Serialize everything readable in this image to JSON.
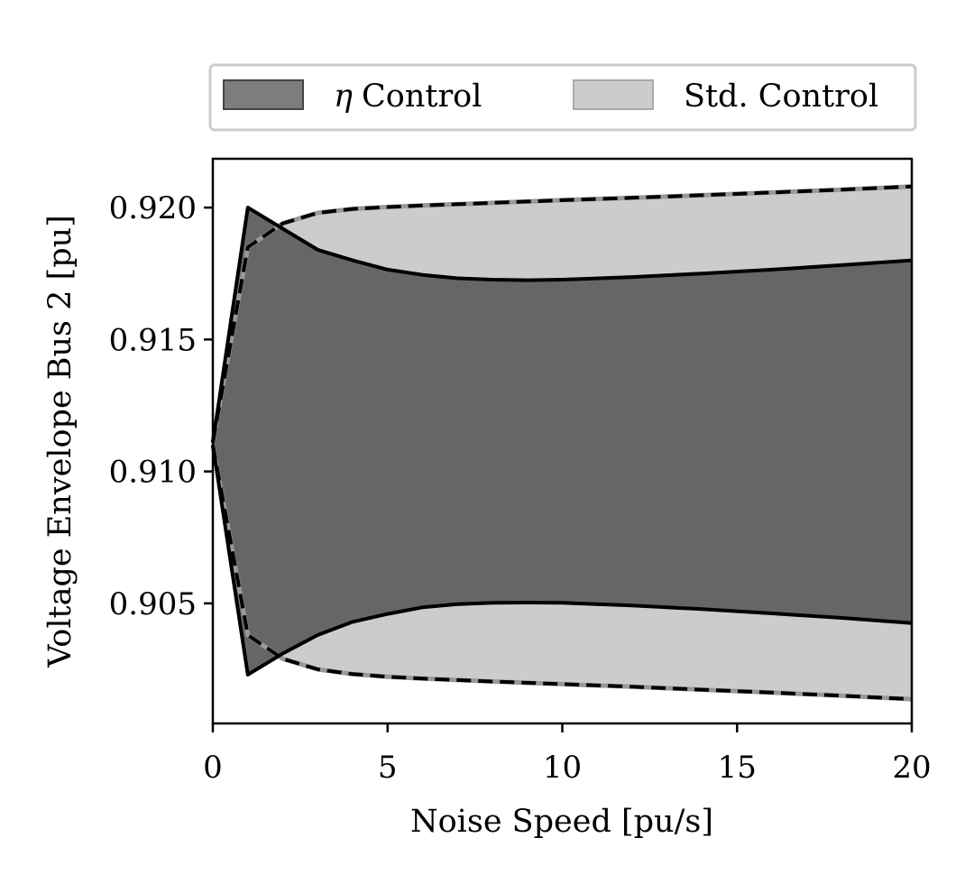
{
  "chart_data": {
    "type": "area",
    "xlabel": "Noise Speed [pu/s]",
    "ylabel": "Voltage Envelope Bus 2 [pu]",
    "xlim": [
      0,
      20
    ],
    "ylim": [
      0.90045,
      0.92185
    ],
    "x_ticks": [
      0,
      5,
      10,
      15,
      20
    ],
    "x_tick_labels": [
      "0",
      "5",
      "10",
      "15",
      "20"
    ],
    "y_ticks": [
      0.905,
      0.91,
      0.915,
      0.92
    ],
    "y_tick_labels": [
      "0.905",
      "0.910",
      "0.915",
      "0.920"
    ],
    "grid": false,
    "legend_position": "top, outside above plot, 2 columns",
    "series": [
      {
        "name": "η Control",
        "legend_symbol": "η",
        "legend_text": "Control",
        "fill_color": "#666666",
        "line_style": "solid",
        "x": [
          0,
          1,
          2,
          3,
          4,
          5,
          6,
          7,
          8,
          9,
          10,
          12,
          14,
          16,
          18,
          20
        ],
        "upper": [
          0.9111,
          0.92,
          0.9192,
          0.9184,
          0.918,
          0.91765,
          0.91745,
          0.91732,
          0.91727,
          0.91725,
          0.91727,
          0.91737,
          0.9175,
          0.91765,
          0.91782,
          0.918
        ],
        "lower": [
          0.911,
          0.9023,
          0.9031,
          0.9038,
          0.9043,
          0.9046,
          0.90485,
          0.90497,
          0.90502,
          0.90503,
          0.90502,
          0.90492,
          0.90478,
          0.90462,
          0.90445,
          0.90425
        ]
      },
      {
        "name": "Std. Control",
        "legend_text": "Std. Control",
        "fill_color": "#cccccc",
        "line_style": "dashed",
        "x": [
          0,
          1,
          2,
          3,
          4,
          5,
          6,
          8,
          10,
          12,
          14,
          16,
          18,
          20
        ],
        "upper": [
          0.9111,
          0.9185,
          0.9194,
          0.9198,
          0.91995,
          0.92002,
          0.92008,
          0.92018,
          0.92028,
          0.92037,
          0.92047,
          0.92057,
          0.92068,
          0.9208
        ],
        "lower": [
          0.911,
          0.9038,
          0.9029,
          0.9025,
          0.90232,
          0.90222,
          0.90215,
          0.90204,
          0.90194,
          0.90184,
          0.90173,
          0.90162,
          0.9015,
          0.90137
        ]
      }
    ]
  }
}
